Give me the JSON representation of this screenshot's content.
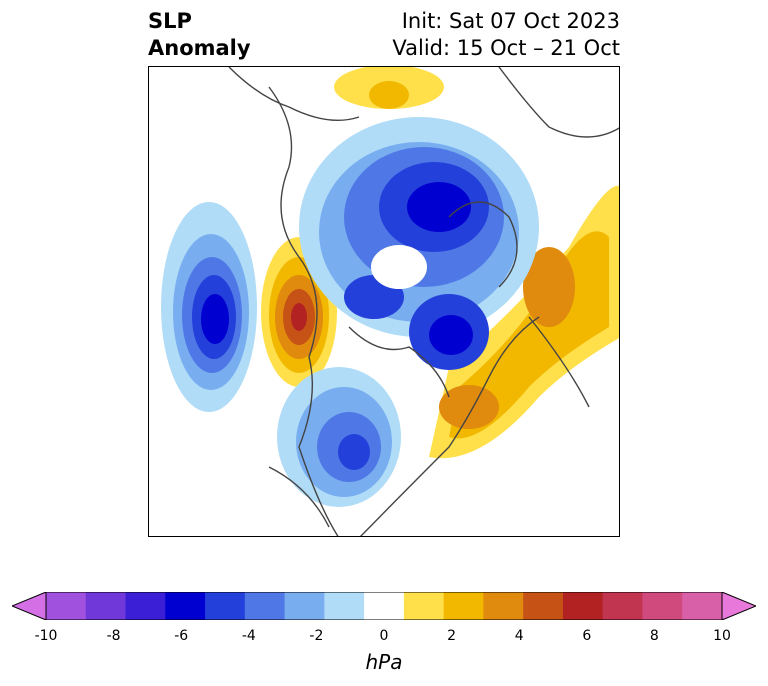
{
  "title": {
    "left_line1": "SLP",
    "left_line2": "Anomaly",
    "right_line1": "Init: Sat 07 Oct 2023",
    "right_line2": "Valid: 15 Oct – 21 Oct"
  },
  "colorbar": {
    "unit": "hPa",
    "ticks": [
      "-10",
      "-8",
      "-6",
      "-4",
      "-2",
      "0",
      "2",
      "4",
      "6",
      "8",
      "10"
    ],
    "colors": [
      "#d46fe6",
      "#a052de",
      "#7038d8",
      "#3a1fd6",
      "#0000d0",
      "#2440da",
      "#4f78e6",
      "#78aef0",
      "#b0dcf8",
      "#ffffff",
      "#ffe04a",
      "#f2b800",
      "#e08a0e",
      "#c65216",
      "#b22222",
      "#c23550",
      "#d04a7e",
      "#d860a8",
      "#e878da"
    ]
  },
  "map": {
    "colors": {
      "neg_light": "#b0dcf8",
      "neg_2": "#78aef0",
      "neg_3": "#4f78e6",
      "neg_4": "#2440da",
      "neg_5": "#0000d0",
      "pos_light": "#ffe04a",
      "pos_2": "#f2b800",
      "pos_3": "#e08a0e",
      "pos_4": "#c65216",
      "pos_5": "#b22222"
    }
  }
}
